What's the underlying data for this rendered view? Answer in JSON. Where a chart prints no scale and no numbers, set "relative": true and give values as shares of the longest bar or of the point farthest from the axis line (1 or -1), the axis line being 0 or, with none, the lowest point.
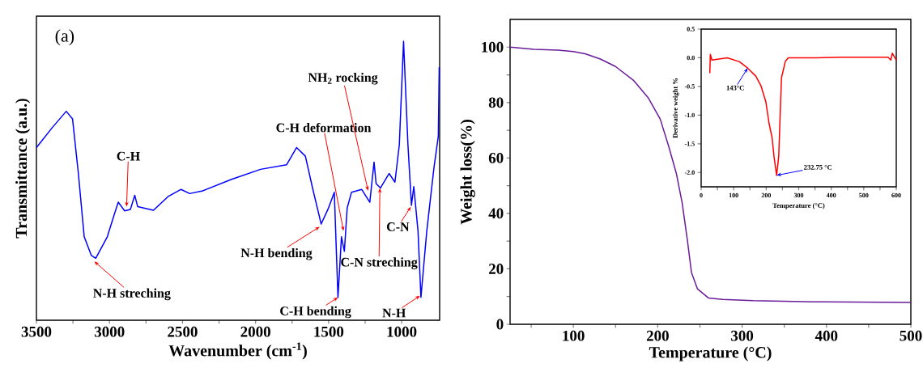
{
  "chart_data": [
    {
      "type": "line",
      "relative": true,
      "xlabel": "Wavenumber (cm$^{-1}$)",
      "ylabel": "Transmittance (a.u.)",
      "color": "#0000ff",
      "xlim": [
        3500,
        740
      ],
      "xticks": [
        3500,
        {
          "value": 3250,
          "label": null
        },
        3000,
        {
          "value": 2750,
          "label": null
        },
        2500,
        {
          "value": 2250,
          "label": null
        },
        2000,
        {
          "value": 1750,
          "label": null
        },
        1500,
        {
          "value": 1250,
          "label": null
        },
        1000
      ],
      "x": [
        3500,
        3391,
        3296,
        3253,
        3213,
        3173,
        3124,
        3094,
        3015,
        2966,
        2940,
        2896,
        2857,
        2827,
        2807,
        2699,
        2600,
        2510,
        2451,
        2362,
        2164,
        1966,
        1788,
        1719,
        1659,
        1610,
        1551,
        1501,
        1461,
        1436,
        1412,
        1392,
        1373,
        1343,
        1274,
        1218,
        1189,
        1175,
        1145,
        1086,
        1046,
        1016,
        987,
        957,
        933,
        917,
        888,
        868,
        828,
        779,
        749,
        743
      ],
      "values": [
        0.619,
        0.691,
        0.749,
        0.722,
        0.526,
        0.299,
        0.232,
        0.222,
        0.299,
        0.381,
        0.423,
        0.392,
        0.397,
        0.448,
        0.407,
        0.394,
        0.443,
        0.469,
        0.454,
        0.464,
        0.505,
        0.541,
        0.557,
        0.619,
        0.588,
        0.474,
        0.345,
        0.402,
        0.459,
        0.082,
        0.299,
        0.247,
        0.402,
        0.459,
        0.469,
        0.423,
        0.567,
        0.49,
        0.474,
        0.526,
        0.495,
        0.629,
        1.0,
        0.629,
        0.412,
        0.479,
        0.32,
        0.082,
        0.32,
        0.546,
        0.66,
        0.907
      ],
      "annotations": [
        "(a)",
        {
          "text": "C-H",
          "x": 2883,
          "y": 0.407
        },
        {
          "text": "N-H streching",
          "x": 3104,
          "y": 0.211
        },
        {
          "text": "C-H deformation",
          "x": 1398,
          "y": 0.32
        },
        {
          "text": "NH$_{2}$ rocking",
          "x": 1230,
          "y": 0.464
        },
        {
          "text": "N-H bending",
          "x": 1561,
          "y": 0.335
        },
        {
          "text": "C-N streching",
          "x": 1149,
          "y": 0.474
        },
        {
          "text": "C-N",
          "x": 937,
          "y": 0.407
        },
        {
          "text": "C-H bending",
          "x": 1436,
          "y": 0.082
        },
        {
          "text": "N-H",
          "x": 874,
          "y": 0.088
        }
      ]
    },
    {
      "type": "line",
      "xlabel": "Temperature (°C)",
      "ylabel": "Weight loss(%)",
      "color": "#6a1b9a",
      "xlim": [
        25,
        500
      ],
      "ylim": [
        0,
        110
      ],
      "xticks": [
        {
          "value": 50,
          "label": null
        },
        100,
        {
          "value": 150,
          "label": null
        },
        200,
        {
          "value": 250,
          "label": null
        },
        300,
        {
          "value": 350,
          "label": null
        },
        400,
        {
          "value": 450,
          "label": null
        },
        500
      ],
      "yticks": [
        0,
        {
          "value": 10,
          "label": null
        },
        20,
        {
          "value": 30,
          "label": null
        },
        40,
        {
          "value": 50,
          "label": null
        },
        60,
        {
          "value": 70,
          "label": null
        },
        80,
        {
          "value": 90,
          "label": null
        },
        100
      ],
      "x": [
        25,
        53.4,
        81.9,
        100,
        114,
        132,
        150,
        171,
        189,
        203,
        213,
        222,
        229,
        235,
        240,
        247,
        260,
        277,
        313,
        384,
        500
      ],
      "values": [
        100,
        99.2,
        98.9,
        98.4,
        97.6,
        95.7,
        93,
        88.1,
        81.6,
        74,
        64.2,
        54.5,
        43.7,
        30.7,
        18.7,
        12.8,
        9.5,
        9.0,
        8.5,
        8.1,
        7.9
      ]
    },
    {
      "type": "line",
      "xlabel": "Temperature (°C)",
      "ylabel": "Derivative weight %",
      "color": "#ff0000",
      "xlim": [
        0,
        600
      ],
      "ylim": [
        -2.25,
        0.5
      ],
      "xticks": [
        0,
        {
          "value": 50,
          "label": null
        },
        100,
        {
          "value": 150,
          "label": null
        },
        200,
        {
          "value": 250,
          "label": null
        },
        300,
        {
          "value": 350,
          "label": null
        },
        400,
        {
          "value": 450,
          "label": null
        },
        500,
        {
          "value": 550,
          "label": null
        },
        600
      ],
      "yticks": [
        {
          "value": -2,
          "label": "-2.0"
        },
        -1.5,
        {
          "value": -1,
          "label": "-1.0"
        },
        -0.5,
        {
          "value": 0,
          "label": "0.0"
        },
        0.5
      ],
      "x": [
        26.6,
        28.3,
        33,
        80.6,
        118,
        143,
        168,
        184,
        199,
        209,
        218,
        224,
        232,
        238.5,
        247,
        259,
        268,
        351,
        434,
        575,
        583,
        588,
        600
      ],
      "values": [
        -0.27,
        0.06,
        -0.04,
        0,
        -0.07,
        -0.18,
        -0.32,
        -0.49,
        -0.77,
        -1.15,
        -1.39,
        -1.72,
        -2.05,
        -1.72,
        -0.35,
        -0.06,
        0,
        0,
        0.01,
        0.01,
        -0.04,
        0.08,
        -0.04
      ],
      "annotations": [
        {
          "text": "143°C",
          "x": 143,
          "y": -0.18
        },
        {
          "text": "232.75 °C",
          "x": 232,
          "y": -2.05
        }
      ]
    }
  ]
}
